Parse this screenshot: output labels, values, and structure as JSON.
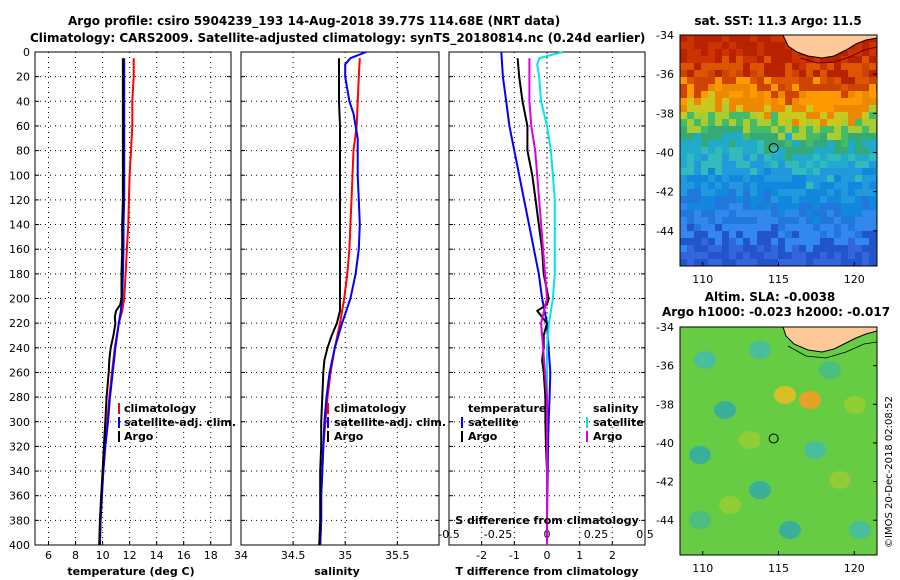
{
  "header": {
    "title_line1": "Argo profile: csiro 5904239_193 14-Aug-2018 39.77S 114.68E (NRT data)",
    "title_line2": "Climatology: CARS2009. Satellite-adjusted climatology: synTS_20180814.nc (0.24d earlier)"
  },
  "credit": "©IMOS 20-Dec-2018 02:08:52",
  "colors": {
    "climatology": "#ff0000",
    "satellite": "#0000ff",
    "argo": "#000000",
    "sat_salinity": "#00e5ee",
    "argo_salinity": "#dd00dd"
  },
  "chart_data": [
    {
      "type": "line",
      "panel": "temperature",
      "xlabel": "temperature (deg C)",
      "ylabel": "depth",
      "xlim": [
        5,
        19.5
      ],
      "ylim": [
        400,
        0
      ],
      "xticks": [
        "6",
        "8",
        "10",
        "12",
        "14",
        "16",
        "18"
      ],
      "yticks": [
        "0",
        "20",
        "40",
        "60",
        "80",
        "100",
        "120",
        "140",
        "160",
        "180",
        "200",
        "220",
        "240",
        "260",
        "280",
        "300",
        "320",
        "340",
        "360",
        "380",
        "400"
      ],
      "legend": [
        "climatology",
        "satellite-adj. clim.",
        "Argo"
      ],
      "series": [
        {
          "name": "climatology",
          "color": "#ff0000",
          "depth": [
            5,
            20,
            40,
            60,
            80,
            100,
            120,
            140,
            160,
            180,
            200,
            210,
            220,
            240,
            260,
            280,
            300,
            320,
            340,
            360,
            380,
            400
          ],
          "values": [
            12.3,
            12.3,
            12.2,
            12.2,
            12.1,
            12.0,
            11.95,
            11.9,
            11.8,
            11.7,
            11.6,
            11.45,
            11.2,
            10.9,
            10.7,
            10.5,
            10.35,
            10.2,
            10.05,
            9.95,
            9.85,
            9.8
          ]
        },
        {
          "name": "satellite-adj. clim.",
          "color": "#0000ff",
          "depth": [
            5,
            20,
            40,
            60,
            80,
            100,
            120,
            140,
            160,
            180,
            200,
            210,
            220,
            240,
            260,
            280,
            300,
            320,
            340,
            360,
            380,
            400
          ],
          "values": [
            11.6,
            11.6,
            11.6,
            11.6,
            11.6,
            11.6,
            11.6,
            11.55,
            11.55,
            11.5,
            11.45,
            11.35,
            11.2,
            10.95,
            10.75,
            10.55,
            10.4,
            10.2,
            10.05,
            9.95,
            9.85,
            9.8
          ]
        },
        {
          "name": "Argo",
          "color": "#000000",
          "depth": [
            5,
            20,
            40,
            60,
            80,
            100,
            120,
            140,
            160,
            180,
            200,
            205,
            210,
            215,
            220,
            230,
            240,
            250,
            260,
            280,
            300,
            320,
            340,
            360,
            380,
            400
          ],
          "values": [
            11.5,
            11.5,
            11.5,
            11.5,
            11.5,
            11.5,
            11.5,
            11.45,
            11.45,
            11.4,
            11.4,
            11.3,
            11.0,
            10.9,
            10.95,
            10.8,
            10.6,
            10.5,
            10.45,
            10.3,
            10.2,
            10.1,
            10.0,
            9.9,
            9.8,
            9.75
          ]
        }
      ]
    },
    {
      "type": "line",
      "panel": "salinity",
      "xlabel": "salinity",
      "ylabel": "depth",
      "xlim": [
        34,
        35.9
      ],
      "ylim": [
        400,
        0
      ],
      "xticks": [
        "34",
        "34.5",
        "35",
        "35.5"
      ],
      "legend": [
        "climatology",
        "satellite-adj. clim.",
        "Argo"
      ],
      "series": [
        {
          "name": "climatology",
          "color": "#ff0000",
          "depth": [
            5,
            20,
            40,
            60,
            80,
            100,
            120,
            140,
            160,
            180,
            200,
            220,
            240,
            260,
            280,
            300,
            320,
            340,
            360,
            380,
            400
          ],
          "values": [
            35.14,
            35.13,
            35.12,
            35.11,
            35.08,
            35.07,
            35.06,
            35.05,
            35.04,
            35.02,
            34.99,
            34.95,
            34.9,
            34.86,
            34.83,
            34.81,
            34.79,
            34.78,
            34.77,
            34.77,
            34.76
          ]
        },
        {
          "name": "satellite-adj. clim.",
          "color": "#0000ff",
          "depth": [
            0,
            5,
            10,
            20,
            30,
            40,
            50,
            60,
            70,
            80,
            100,
            120,
            140,
            160,
            180,
            200,
            220,
            240,
            260,
            280,
            300,
            320,
            340,
            360,
            380,
            400
          ],
          "values": [
            35.2,
            35.05,
            35.0,
            35.0,
            35.02,
            35.04,
            35.08,
            35.1,
            35.12,
            35.12,
            35.12,
            35.13,
            35.14,
            35.13,
            35.1,
            35.05,
            34.97,
            34.9,
            34.85,
            34.82,
            34.8,
            34.79,
            34.78,
            34.77,
            34.77,
            34.76
          ]
        },
        {
          "name": "Argo",
          "color": "#000000",
          "depth": [
            5,
            20,
            40,
            60,
            80,
            100,
            120,
            140,
            160,
            180,
            200,
            210,
            220,
            230,
            240,
            250,
            260,
            280,
            300,
            320,
            340,
            360,
            380,
            400
          ],
          "values": [
            34.94,
            34.94,
            34.94,
            34.95,
            34.95,
            34.95,
            34.95,
            34.95,
            34.95,
            34.95,
            34.95,
            34.95,
            34.92,
            34.87,
            34.83,
            34.8,
            34.79,
            34.78,
            34.77,
            34.77,
            34.76,
            34.76,
            34.76,
            34.75
          ]
        }
      ]
    },
    {
      "type": "line",
      "panel": "difference",
      "xlabel": "T difference from climatology",
      "top_axis_label": "S difference from climatology",
      "xlim": [
        -3,
        3
      ],
      "ylim": [
        400,
        0
      ],
      "xticks": [
        "-2",
        "-1",
        "0",
        "1",
        "2"
      ],
      "sticks": [
        "-0.5",
        "-0.25",
        "0",
        "0.25",
        "0.5"
      ],
      "legend_groups": [
        "temperature",
        "salinity"
      ],
      "legend": [
        "satellite",
        "Argo",
        "satellite",
        "Argo"
      ],
      "series": [
        {
          "name": "temperature satellite",
          "color": "#0000ff",
          "depth": [
            0,
            20,
            40,
            60,
            80,
            100,
            120,
            140,
            160,
            180,
            200,
            220,
            240,
            260,
            280,
            300,
            320,
            340,
            360,
            380,
            400
          ],
          "values": [
            -1.4,
            -1.35,
            -1.25,
            -1.15,
            -1.0,
            -0.85,
            -0.7,
            -0.55,
            -0.4,
            -0.25,
            -0.15,
            0.0,
            0.05,
            0.1,
            0.08,
            0.05,
            0.03,
            0.02,
            0.01,
            0.0,
            0.0
          ]
        },
        {
          "name": "temperature Argo",
          "color": "#000000",
          "depth": [
            5,
            20,
            40,
            60,
            80,
            100,
            120,
            140,
            160,
            180,
            200,
            205,
            210,
            215,
            220,
            230,
            240,
            250,
            260,
            280,
            300,
            320,
            340,
            360,
            380,
            400
          ],
          "values": [
            -0.9,
            -0.85,
            -0.75,
            -0.6,
            -0.6,
            -0.45,
            -0.35,
            -0.25,
            -0.15,
            -0.1,
            0.05,
            0.0,
            -0.3,
            -0.15,
            0.0,
            -0.1,
            -0.1,
            -0.15,
            -0.1,
            -0.05,
            -0.05,
            -0.03,
            0.0,
            0.0,
            0.0,
            0.0
          ]
        },
        {
          "name": "salinity satellite",
          "color": "#00e5ee",
          "depth": [
            0,
            5,
            10,
            20,
            40,
            60,
            80,
            100,
            120,
            140,
            160,
            180,
            200,
            220,
            240,
            260,
            280,
            300,
            320,
            340,
            360,
            380,
            400
          ],
          "values": [
            0.08,
            -0.04,
            -0.05,
            -0.04,
            -0.03,
            0.0,
            0.02,
            0.03,
            0.04,
            0.04,
            0.04,
            0.04,
            0.03,
            0.01,
            0.0,
            0.0,
            0.0,
            0.0,
            0.0,
            0.0,
            0.0,
            0.0,
            0.0
          ]
        },
        {
          "name": "salinity Argo",
          "color": "#dd00dd",
          "depth": [
            5,
            20,
            40,
            60,
            80,
            100,
            120,
            140,
            160,
            180,
            200,
            220,
            240,
            260,
            280,
            300,
            320,
            340,
            360,
            380,
            400
          ],
          "values": [
            -0.09,
            -0.09,
            -0.09,
            -0.08,
            -0.06,
            -0.05,
            -0.04,
            -0.03,
            -0.02,
            -0.01,
            0.0,
            -0.03,
            -0.02,
            -0.01,
            0.0,
            0.0,
            0.0,
            0.0,
            0.0,
            0.0,
            0.0
          ]
        }
      ]
    },
    {
      "type": "heatmap",
      "panel": "sst_map",
      "title": "sat. SST: 11.3 Argo: 11.5",
      "xlim": [
        108.5,
        121.5
      ],
      "ylim": [
        -45.8,
        -34
      ],
      "xticks": [
        "110",
        "115",
        "120"
      ],
      "yticks": [
        "-34",
        "-36",
        "-38",
        "-40",
        "-42",
        "-44"
      ],
      "marker": {
        "lon": 114.68,
        "lat": -39.77
      }
    },
    {
      "type": "heatmap",
      "panel": "sla_map",
      "title_line1": "Altim. SLA: -0.0038",
      "title_line2": "Argo h1000: -0.023 h2000: -0.017",
      "xlim": [
        108.5,
        121.5
      ],
      "ylim": [
        -45.8,
        -34
      ],
      "xticks": [
        "110",
        "115",
        "120"
      ],
      "yticks": [
        "-34",
        "-36",
        "-38",
        "-40",
        "-42",
        "-44"
      ],
      "marker": {
        "lon": 114.68,
        "lat": -39.77
      }
    }
  ]
}
